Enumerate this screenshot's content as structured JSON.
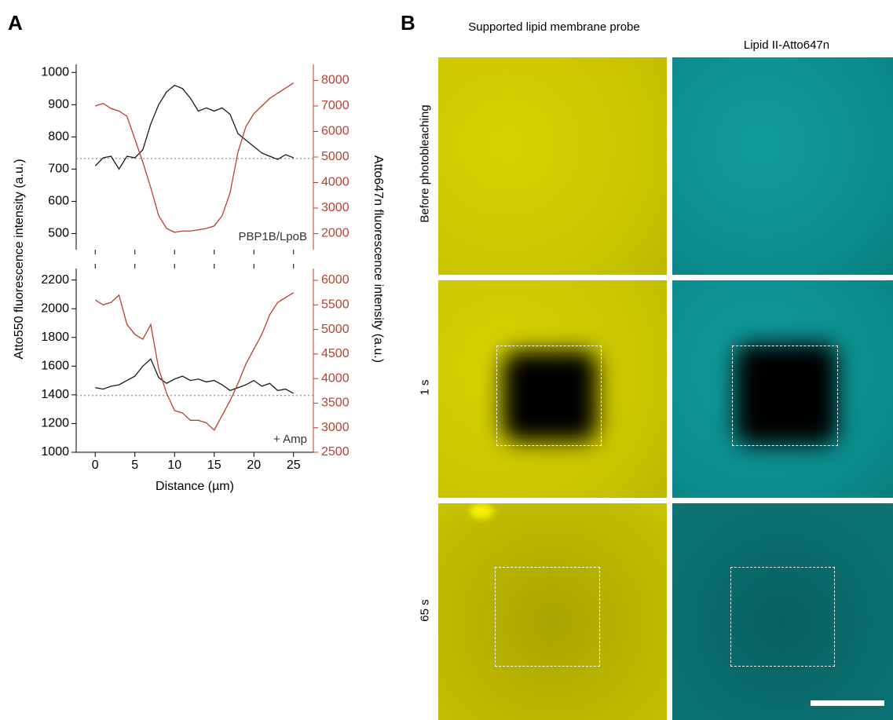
{
  "figure": {
    "panel_labels": [
      "A",
      "B"
    ],
    "column_titles": [
      "Supported lipid membrane probe",
      "Lipid II-Atto647n"
    ],
    "row_labels": [
      "Before photobleaching",
      "1 s",
      "65 s"
    ]
  },
  "chart_data": [
    {
      "type": "line",
      "ylabel": "Atto550 fluorescence intensity (a.u.)",
      "y2label": "Atto647n fluorescence intensity (a.u.)",
      "annotation": "PBP1B/LpoB",
      "reference_line": 733,
      "x": [
        0,
        1,
        2,
        3,
        4,
        5,
        6,
        7,
        8,
        9,
        10,
        11,
        12,
        13,
        14,
        15,
        16,
        17,
        18,
        19,
        20,
        21,
        22,
        23,
        24,
        25
      ],
      "xlim": [
        -2.4,
        27.5
      ],
      "xticks": [
        0,
        5,
        10,
        15,
        20,
        25
      ],
      "ylim": [
        450,
        1025
      ],
      "yticks": [
        500,
        600,
        700,
        800,
        900,
        1000
      ],
      "y2lim": [
        1370,
        8630
      ],
      "y2ticks": [
        2000,
        3000,
        4000,
        5000,
        6000,
        7000,
        8000
      ],
      "series": [
        {
          "color": "#1a1a1a",
          "values": [
            710,
            735,
            740,
            700,
            740,
            735,
            760,
            840,
            900,
            940,
            960,
            950,
            920,
            880,
            890,
            880,
            890,
            870,
            810,
            790,
            770,
            750,
            740,
            730,
            745,
            735
          ]
        },
        {
          "color": "#b8412b",
          "axis": "y2",
          "values": [
            7000,
            7100,
            6900,
            6800,
            6600,
            5700,
            4800,
            3800,
            2700,
            2200,
            2050,
            2100,
            2100,
            2150,
            2200,
            2300,
            2700,
            3600,
            5200,
            6200,
            6700,
            7000,
            7300,
            7500,
            7700,
            7900
          ]
        }
      ]
    },
    {
      "type": "line",
      "xlabel": "Distance (µm)",
      "annotation": "+ Amp",
      "reference_line": 1395,
      "x": [
        0,
        1,
        2,
        3,
        4,
        5,
        6,
        7,
        8,
        9,
        10,
        11,
        12,
        13,
        14,
        15,
        16,
        17,
        18,
        19,
        20,
        21,
        22,
        23,
        24,
        25
      ],
      "xlim": [
        -2.4,
        27.5
      ],
      "xticks": [
        0,
        5,
        10,
        15,
        20,
        25
      ],
      "ylim": [
        1000,
        2280
      ],
      "yticks": [
        1000,
        1200,
        1400,
        1600,
        1800,
        2000,
        2200
      ],
      "y2lim": [
        2500,
        6240
      ],
      "y2ticks": [
        2500,
        3000,
        3500,
        4000,
        4500,
        5000,
        5500,
        6000
      ],
      "series": [
        {
          "color": "#1a1a1a",
          "values": [
            1450,
            1440,
            1460,
            1470,
            1500,
            1530,
            1600,
            1650,
            1520,
            1480,
            1510,
            1530,
            1500,
            1510,
            1490,
            1500,
            1470,
            1430,
            1450,
            1470,
            1500,
            1460,
            1480,
            1430,
            1440,
            1410
          ]
        },
        {
          "color": "#b8412b",
          "axis": "y2",
          "values": [
            5600,
            5500,
            5550,
            5700,
            5100,
            4900,
            4800,
            5100,
            4200,
            3700,
            3350,
            3300,
            3150,
            3150,
            3100,
            2950,
            3250,
            3550,
            3900,
            4300,
            4600,
            4900,
            5300,
            5550,
            5650,
            5750
          ]
        }
      ]
    }
  ]
}
